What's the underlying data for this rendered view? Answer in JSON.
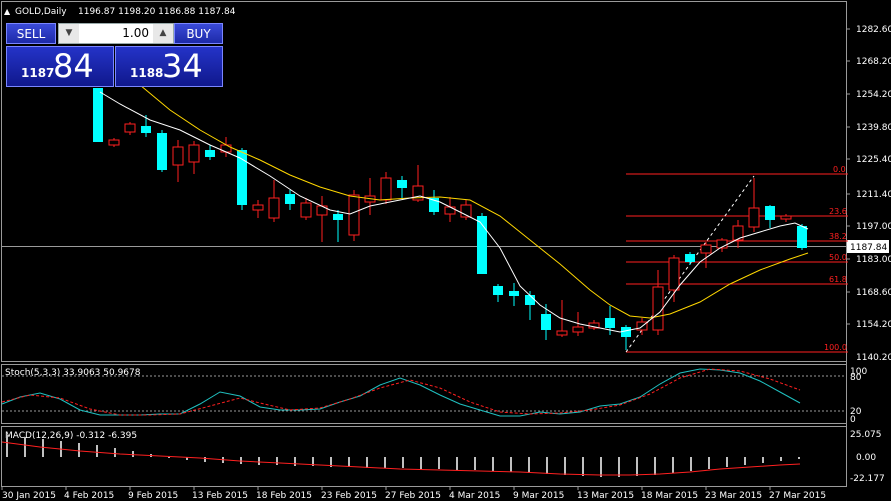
{
  "header": {
    "symbol_label": "GOLD,Daily",
    "ohlc": "1196.87 1198.20 1186.88 1187.84"
  },
  "trade_panel": {
    "sell_label": "SELL",
    "buy_label": "BUY",
    "lot_value": "1.00",
    "bid_small": "1187",
    "bid_big": "84",
    "ask_small": "1188",
    "ask_big": "34"
  },
  "price_axis": {
    "labels": [
      "1282.60",
      "1268.20",
      "1254.20",
      "1239.80",
      "1225.40",
      "1211.40",
      "1197.00",
      "1183.00",
      "1168.60",
      "1154.20",
      "1140.20"
    ],
    "current": "1187.84"
  },
  "fib_levels": [
    "0.0",
    "23.6",
    "38.2",
    "50.0",
    "61.8",
    "100.0"
  ],
  "stoch": {
    "label": "Stoch(5,3,3) 33.9063 50.9678",
    "axis": [
      "100",
      "80",
      "20",
      "0"
    ]
  },
  "macd": {
    "label": "MACD(12,26,9) -0.312 -6.395",
    "axis": [
      "25.075",
      "0.00",
      "-22.177"
    ]
  },
  "dates": [
    "30 Jan 2015",
    "4 Feb 2015",
    "9 Feb 2015",
    "13 Feb 2015",
    "18 Feb 2015",
    "23 Feb 2015",
    "27 Feb 2015",
    "4 Mar 2015",
    "9 Mar 2015",
    "13 Mar 2015",
    "18 Mar 2015",
    "23 Mar 2015",
    "27 Mar 2015"
  ],
  "colors": {
    "bull": "#00ffff",
    "bear": "#ff2020",
    "ma_fast": "#ffffff",
    "ma_slow": "#ffd700",
    "fib": "#ff2020",
    "stoch_main": "#20c0c0",
    "stoch_signal": "#ff2020",
    "macd_hist": "#c0c0c0",
    "macd_signal": "#ff2020"
  }
}
